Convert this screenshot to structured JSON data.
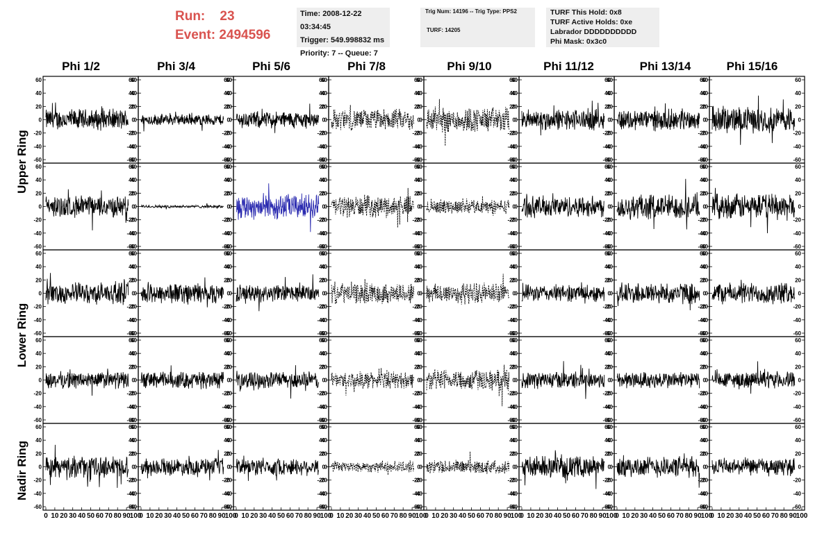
{
  "header": {
    "run_label": "Run:",
    "run_value": "23",
    "event_label": "Event:",
    "event_value": "2494596",
    "time": "Time: 2008-12-22 03:34:45",
    "trigger": "Trigger: 549.998832 ms",
    "priority": "Priority: 7 -- Queue: 7",
    "trig_num": "Trig Num: 14196 -- Trig Type: PPS2",
    "turf": "TURF: 14205",
    "turf_this_hold": "TURF This Hold: 0x8",
    "turf_active_holds": "TURF Active Holds: 0xe",
    "labrador": "Labrador DDDDDDDDDD",
    "phi_mask": "Phi Mask: 0x3c0"
  },
  "chart_data": {
    "type": "line",
    "columns": [
      "Phi 1/2",
      "Phi 3/4",
      "Phi 5/6",
      "Phi 7/8",
      "Phi 9/10",
      "Phi 11/12",
      "Phi 13/14",
      "Phi 15/16"
    ],
    "rows": [
      "Upper Ring",
      "Lower Ring",
      "Nadir Ring"
    ],
    "subrows_per_ring": [
      2,
      2,
      1
    ],
    "xlim": [
      0,
      100
    ],
    "ylim": [
      -60,
      60
    ],
    "y_ticks": [
      60,
      40,
      20,
      0,
      -20,
      -40,
      -60
    ],
    "x_ticks": [
      0,
      10,
      20,
      30,
      40,
      50,
      60,
      70,
      80,
      90,
      100
    ],
    "x_tick_labels": [
      "0",
      "10",
      "20",
      "30",
      "40",
      "50",
      "60",
      "70",
      "80",
      "90",
      "100"
    ],
    "approx_amplitude_by_panel": [
      [
        15,
        8,
        12,
        15,
        18,
        15,
        15,
        18
      ],
      [
        15,
        2,
        18,
        15,
        10,
        15,
        18,
        18
      ],
      [
        15,
        15,
        12,
        15,
        15,
        12,
        15,
        15
      ],
      [
        12,
        12,
        12,
        12,
        15,
        12,
        12,
        12
      ],
      [
        15,
        12,
        12,
        8,
        10,
        15,
        15,
        12
      ]
    ],
    "dashed_columns": [
      3,
      4
    ],
    "highlight": {
      "row": 1,
      "col": 2,
      "color": "#2b2bb0"
    },
    "trace_color": "#000000"
  }
}
